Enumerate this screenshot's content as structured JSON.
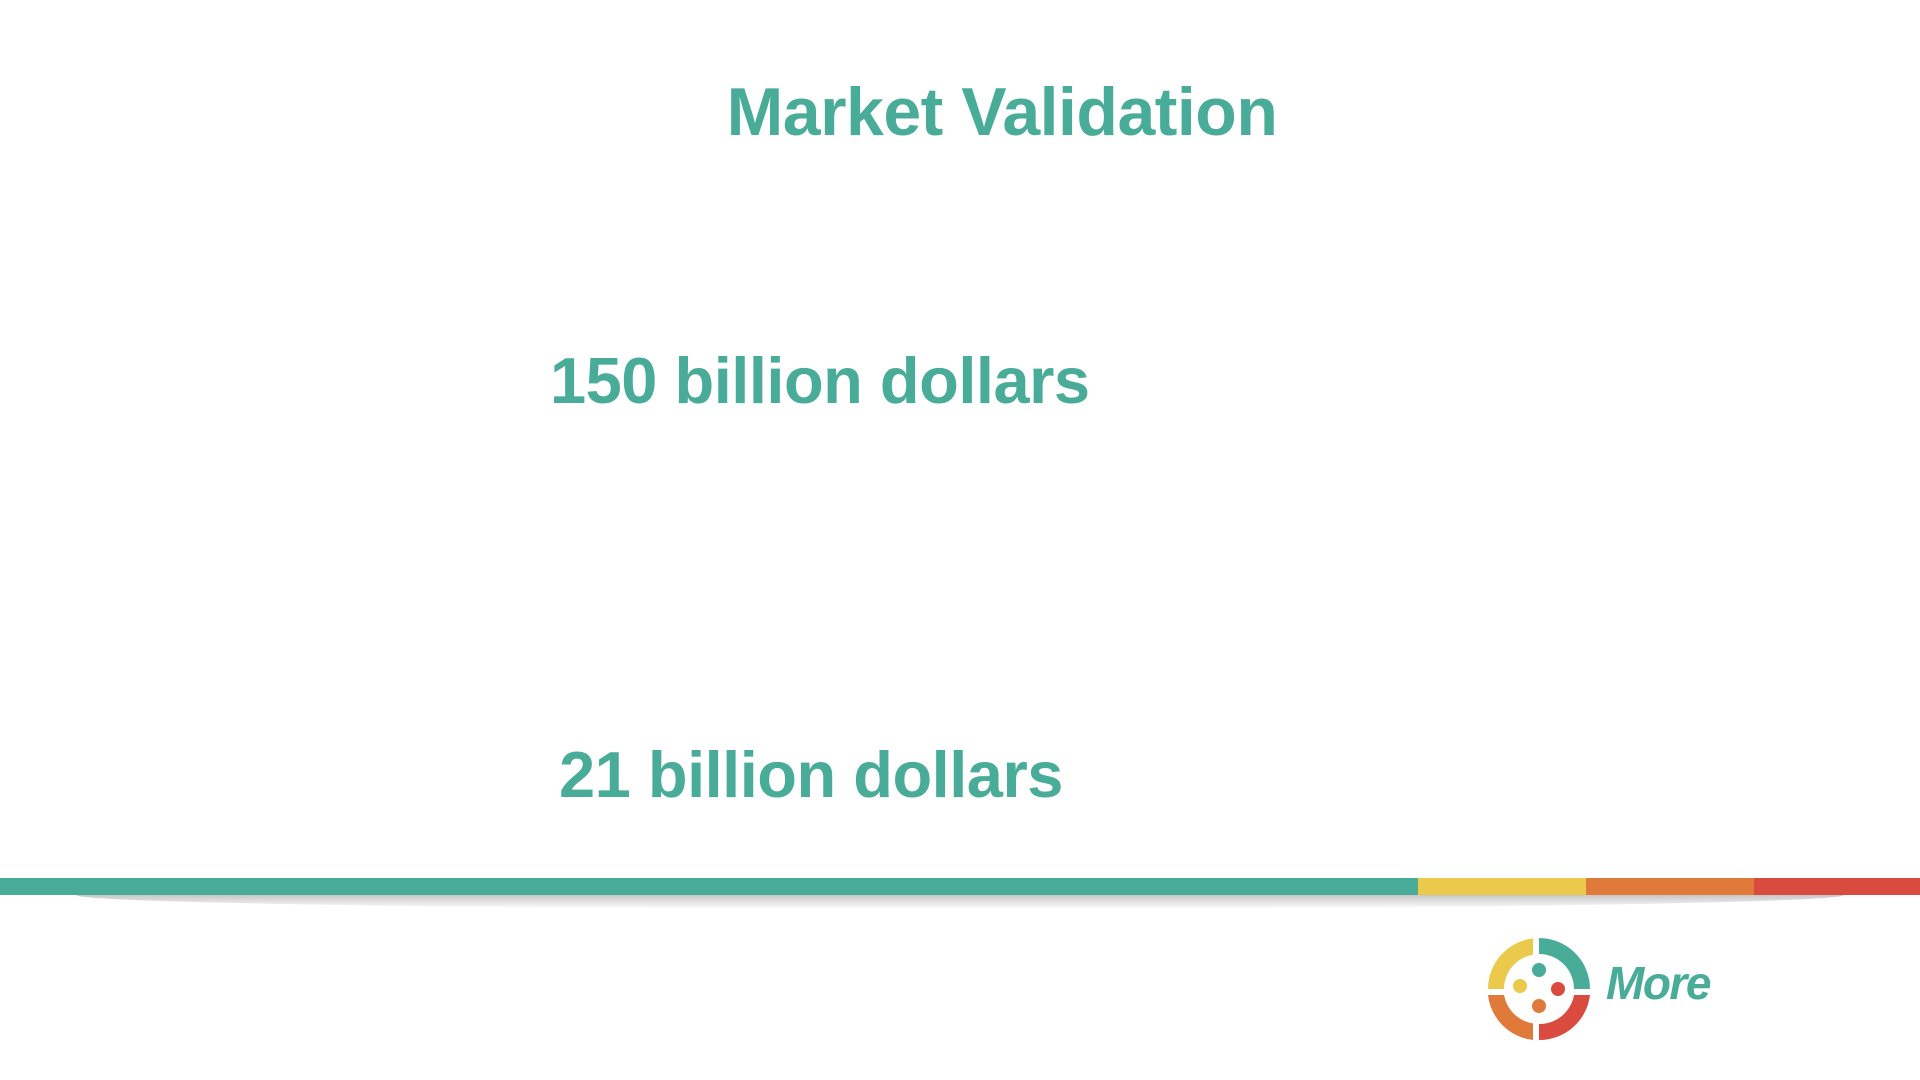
{
  "slide": {
    "title": "Market Validation",
    "stats": [
      "150 billion dollars",
      "21 billion dollars"
    ]
  },
  "logo": {
    "wordmark": "More",
    "icon": "four-quadrant-people-icon"
  },
  "colors": {
    "accent_teal": "#48ac98",
    "accent_yellow": "#ebc94a",
    "accent_orange": "#e07a3b",
    "accent_red": "#d94b3e",
    "background": "#ffffff"
  }
}
